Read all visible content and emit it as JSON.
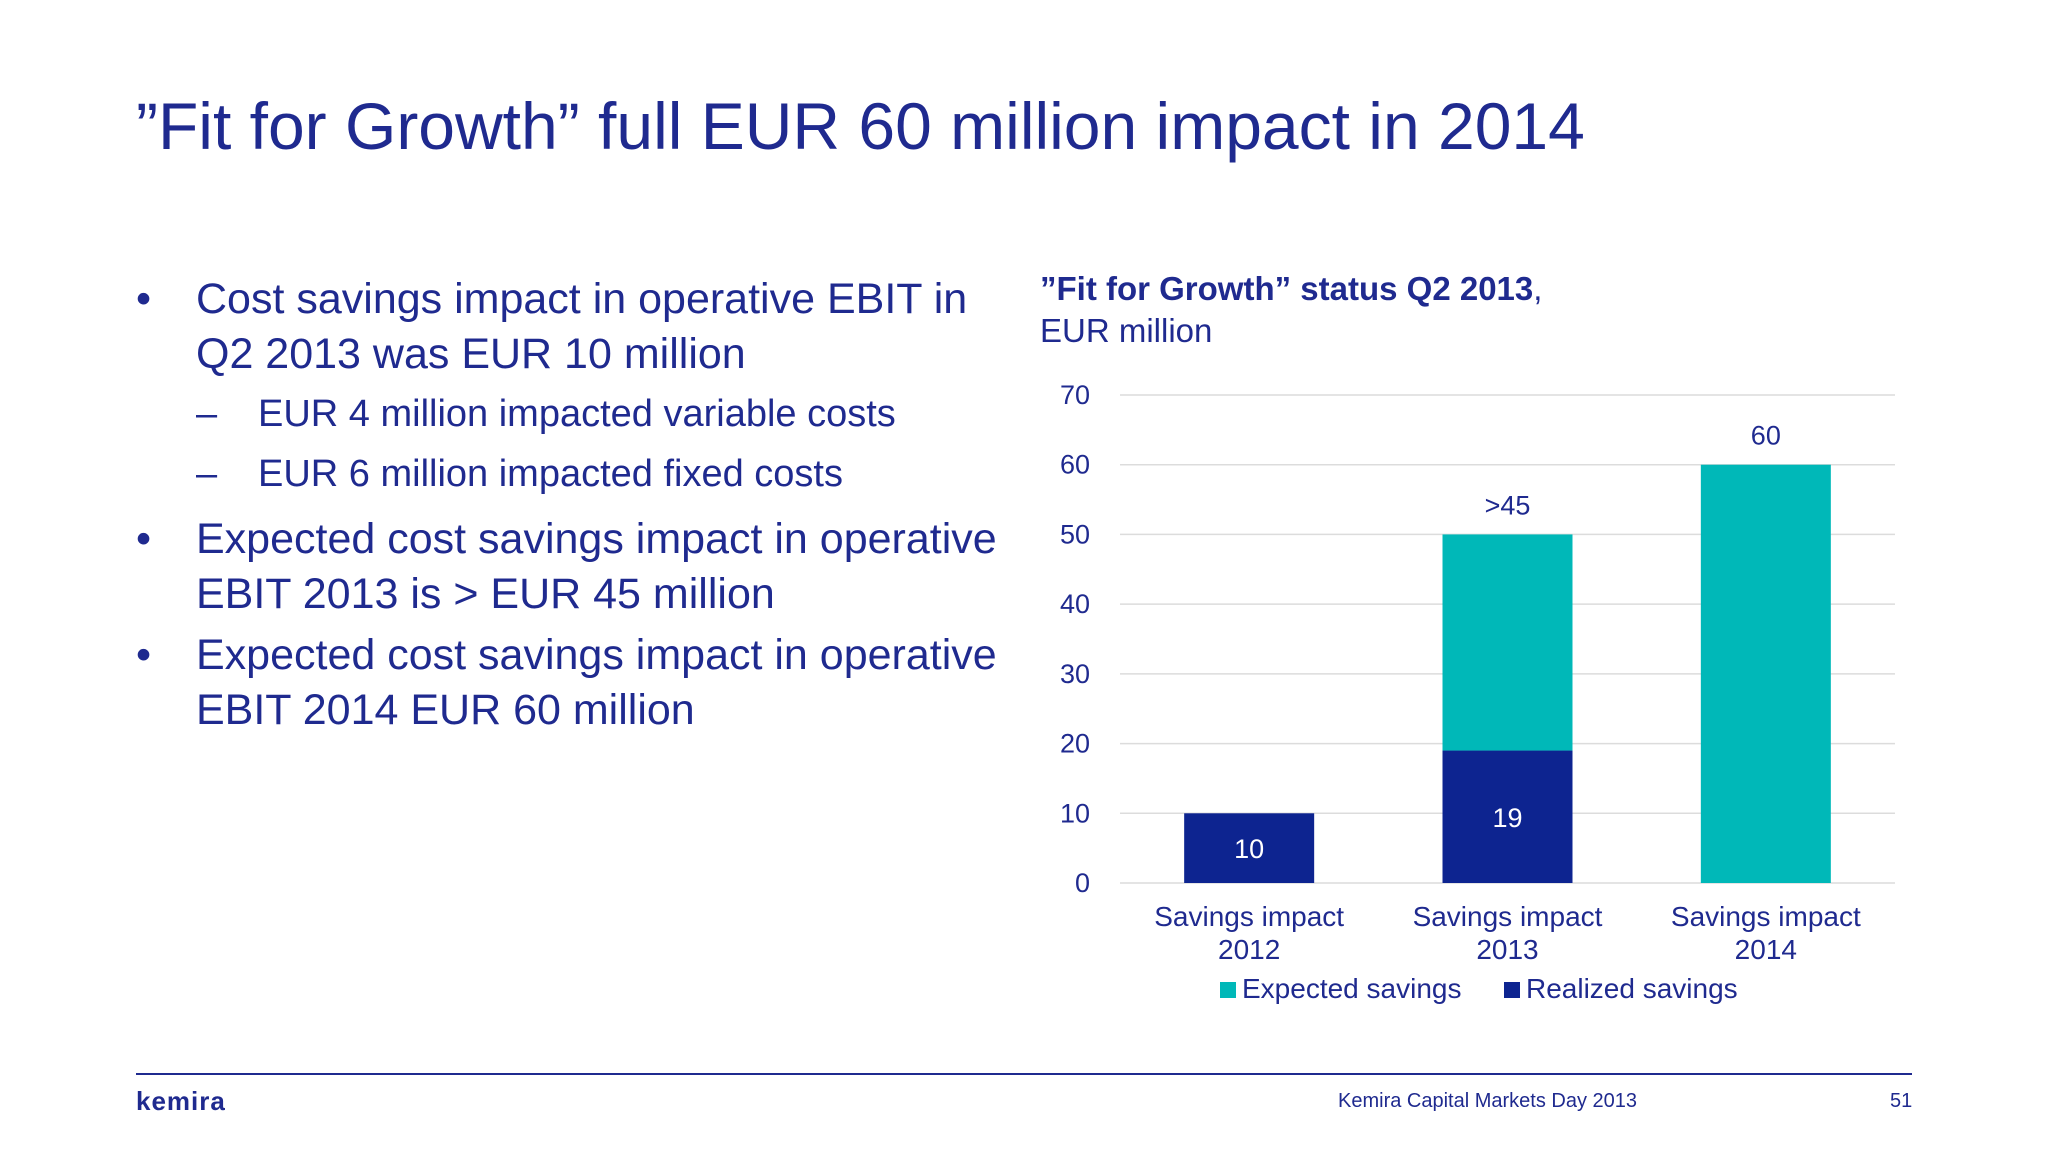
{
  "slide": {
    "title": "”Fit for Growth” full EUR 60 million impact in 2014"
  },
  "bullets": [
    {
      "marker": "•",
      "text": "Cost savings impact in operative EBIT in Q2 2013 was EUR 10 million",
      "sub": [
        {
          "marker": "–",
          "text": "EUR 4 million impacted variable costs"
        },
        {
          "marker": "–",
          "text": "EUR 6 million impacted fixed costs"
        }
      ]
    },
    {
      "marker": "•",
      "text": "Expected cost savings impact in operative EBIT 2013 is > EUR 45 million"
    },
    {
      "marker": "•",
      "text": "Expected cost savings impact in operative EBIT 2014 EUR 60 million"
    }
  ],
  "chart_heading": {
    "bold": "”Fit for Growth” status Q2 2013",
    "comma": ",",
    "unit": "EUR million"
  },
  "chart_data": {
    "type": "bar",
    "stacked": true,
    "categories": [
      [
        "Savings impact",
        "2012"
      ],
      [
        "Savings impact",
        "2013"
      ],
      [
        "Savings impact",
        "2014"
      ]
    ],
    "series": [
      {
        "name": "Realized savings",
        "color": "#0d2490",
        "values": [
          10,
          19,
          0
        ]
      },
      {
        "name": "Expected savings",
        "color": "#00b8b8",
        "values": [
          0,
          31,
          60
        ]
      }
    ],
    "segment_labels": [
      {
        "category": 0,
        "series": 0,
        "text": "10"
      },
      {
        "category": 1,
        "series": 0,
        "text": "19"
      }
    ],
    "top_labels": [
      ">45",
      "60"
    ],
    "top_label_categories": [
      1,
      2
    ],
    "ylim": [
      0,
      70
    ],
    "yticks": [
      0,
      10,
      20,
      30,
      40,
      50,
      60,
      70
    ],
    "grid": true,
    "legend": [
      {
        "name": "Expected savings",
        "color": "#00b8b8"
      },
      {
        "name": "Realized savings",
        "color": "#0d2490"
      }
    ],
    "legend_position": "bottom"
  },
  "footer": {
    "logo": "kemira",
    "event": "Kemira Capital Markets Day 2013",
    "page": "51"
  }
}
